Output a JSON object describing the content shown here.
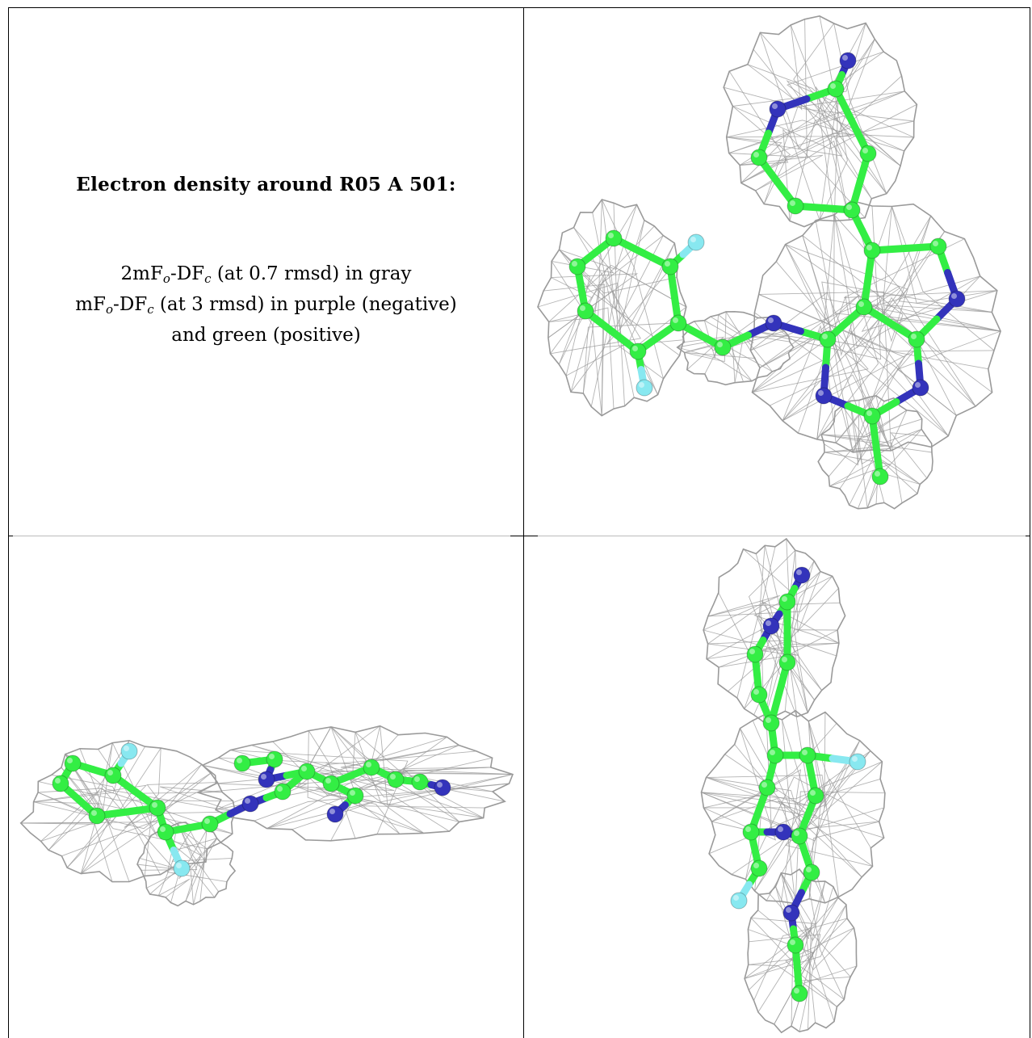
{
  "caption": {
    "title": "Electron density around R05 A 501:",
    "line1": {
      "pre": "2mF",
      "sub1": "o",
      "mid": "-DF",
      "sub2": "c",
      "post": " (at 0.7 rmsd) in gray"
    },
    "line2": {
      "pre": "mF",
      "sub1": "o",
      "mid": "-DF",
      "sub2": "c",
      "post": " (at 3 rmsd) in purple (negative)"
    },
    "line3": "and green (positive)"
  },
  "colors": {
    "carbon": "#33ee44",
    "nitrogen": "#3333bb",
    "fluorine": "#88e8f0",
    "mesh": "#9a9a9a",
    "grid": "#000000"
  },
  "views": [
    {
      "name": "top-right-view"
    },
    {
      "name": "bottom-left-view"
    },
    {
      "name": "bottom-right-view"
    }
  ]
}
